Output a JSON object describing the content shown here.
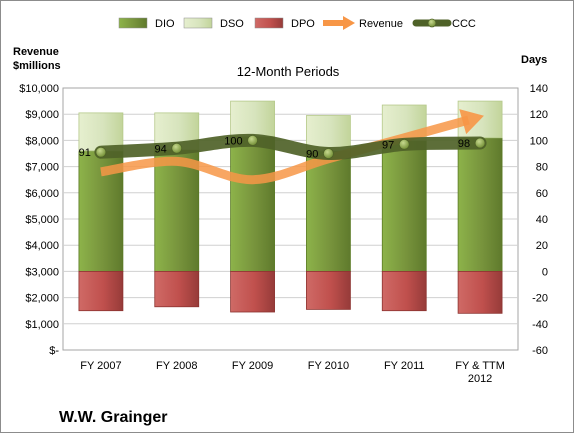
{
  "chart_data": {
    "type": "bar",
    "title": "W.W. Grainger",
    "subtitle": "12-Month Periods",
    "categories": [
      [
        "FY 2007"
      ],
      [
        "FY 2008"
      ],
      [
        "FY 2009"
      ],
      [
        "FY 2010"
      ],
      [
        "FY 2011"
      ],
      [
        "FY & TTM",
        "2012"
      ]
    ],
    "y_left": {
      "label": [
        "Revenue",
        "$millions"
      ],
      "range": [
        0,
        10000
      ],
      "ticks": [
        0,
        1000,
        2000,
        3000,
        4000,
        5000,
        6000,
        7000,
        8000,
        9000,
        10000
      ],
      "tick_labels": [
        "$-",
        "$1,000",
        "$2,000",
        "$3,000",
        "$4,000",
        "$5,000",
        "$6,000",
        "$7,000",
        "$8,000",
        "$9,000",
        "$10,000"
      ]
    },
    "y_right": {
      "label": "Days",
      "range": [
        -60,
        140
      ],
      "ticks": [
        -60,
        -40,
        -20,
        0,
        20,
        40,
        60,
        80,
        100,
        120,
        140
      ],
      "tick_labels": [
        "-60",
        "-40",
        "-20",
        "0",
        "20",
        "40",
        "60",
        "80",
        "100",
        "120",
        "140"
      ]
    },
    "grid": true,
    "legend_position": "top",
    "series": [
      {
        "name": "DIO",
        "kind": "stacked-bar",
        "axis": "right",
        "color": "#77933C",
        "values": [
          92,
          93,
          103,
          92,
          100,
          102
        ]
      },
      {
        "name": "DSO",
        "kind": "stacked-bar",
        "axis": "right",
        "color": "#D7E4BD",
        "values": [
          29,
          28,
          27,
          27,
          27,
          28
        ]
      },
      {
        "name": "DPO",
        "kind": "negative-bar",
        "axis": "right",
        "color": "#C0504D",
        "values": [
          -30,
          -27,
          -31,
          -29,
          -30,
          -32
        ]
      },
      {
        "name": "Revenue",
        "kind": "arrow-line",
        "axis": "left",
        "color": "#F79646",
        "values": [
          6800,
          7200,
          6500,
          7300,
          8100,
          8900
        ]
      },
      {
        "name": "CCC",
        "kind": "line",
        "axis": "right",
        "color": "#4F6228",
        "values": [
          91,
          94,
          100,
          90,
          97,
          98
        ],
        "labels": [
          "91",
          "94",
          "100",
          "90",
          "97",
          "98"
        ]
      }
    ]
  }
}
